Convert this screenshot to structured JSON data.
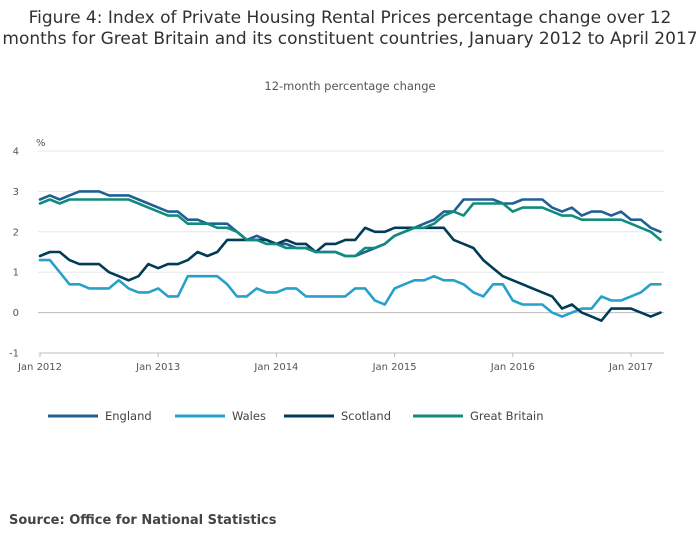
{
  "chart_data": {
    "type": "line",
    "title": "Figure 4: Index of Private Housing Rental Prices percentage change over 12 months for Great Britain and its constituent countries, January 2012 to April 2017",
    "subtitle": "12-month percentage change",
    "ylabel": "%",
    "ylim": [
      -1,
      4
    ],
    "yticks": [
      "-1",
      "0",
      "1",
      "2",
      "3",
      "4"
    ],
    "xticks": [
      {
        "label": "Jan 2012",
        "index": 0
      },
      {
        "label": "Jan 2013",
        "index": 12
      },
      {
        "label": "Jan 2014",
        "index": 24
      },
      {
        "label": "Jan 2015",
        "index": 36
      },
      {
        "label": "Jan 2016",
        "index": 48
      },
      {
        "label": "Jan 2017",
        "index": 60
      }
    ],
    "grid": true,
    "legend_position": "bottom",
    "series": [
      {
        "name": "England",
        "color": "#206095",
        "values": [
          2.8,
          2.9,
          2.8,
          2.9,
          3.0,
          3.0,
          3.0,
          2.9,
          2.9,
          2.9,
          2.8,
          2.7,
          2.6,
          2.5,
          2.5,
          2.3,
          2.3,
          2.2,
          2.2,
          2.2,
          2.0,
          1.8,
          1.9,
          1.8,
          1.7,
          1.7,
          1.6,
          1.6,
          1.5,
          1.5,
          1.5,
          1.4,
          1.4,
          1.5,
          1.6,
          1.7,
          1.9,
          2.0,
          2.1,
          2.2,
          2.3,
          2.5,
          2.5,
          2.8,
          2.8,
          2.8,
          2.8,
          2.7,
          2.7,
          2.8,
          2.8,
          2.8,
          2.6,
          2.5,
          2.6,
          2.4,
          2.5,
          2.5,
          2.4,
          2.5,
          2.3,
          2.3,
          2.1,
          2.0
        ]
      },
      {
        "name": "Wales",
        "color": "#27a0cc",
        "values": [
          1.3,
          1.3,
          1.0,
          0.7,
          0.7,
          0.6,
          0.6,
          0.6,
          0.8,
          0.6,
          0.5,
          0.5,
          0.6,
          0.4,
          0.4,
          0.9,
          0.9,
          0.9,
          0.9,
          0.7,
          0.4,
          0.4,
          0.6,
          0.5,
          0.5,
          0.6,
          0.6,
          0.4,
          0.4,
          0.4,
          0.4,
          0.4,
          0.6,
          0.6,
          0.3,
          0.2,
          0.6,
          0.7,
          0.8,
          0.8,
          0.9,
          0.8,
          0.8,
          0.7,
          0.5,
          0.4,
          0.7,
          0.7,
          0.3,
          0.2,
          0.2,
          0.2,
          0.0,
          -0.1,
          0.0,
          0.1,
          0.1,
          0.4,
          0.3,
          0.3,
          0.4,
          0.5,
          0.7,
          0.7
        ]
      },
      {
        "name": "Scotland",
        "color": "#003c57",
        "values": [
          1.4,
          1.5,
          1.5,
          1.3,
          1.2,
          1.2,
          1.2,
          1.0,
          0.9,
          0.8,
          0.9,
          1.2,
          1.1,
          1.2,
          1.2,
          1.3,
          1.5,
          1.4,
          1.5,
          1.8,
          1.8,
          1.8,
          1.8,
          1.8,
          1.7,
          1.8,
          1.7,
          1.7,
          1.5,
          1.7,
          1.7,
          1.8,
          1.8,
          2.1,
          2.0,
          2.0,
          2.1,
          2.1,
          2.1,
          2.1,
          2.1,
          2.1,
          1.8,
          1.7,
          1.6,
          1.3,
          1.1,
          0.9,
          0.8,
          0.7,
          0.6,
          0.5,
          0.4,
          0.1,
          0.2,
          0.0,
          -0.1,
          -0.2,
          0.1,
          0.1,
          0.1,
          0.0,
          -0.1,
          0.0
        ]
      },
      {
        "name": "Great Britain",
        "color": "#118c7b",
        "values": [
          2.7,
          2.8,
          2.7,
          2.8,
          2.8,
          2.8,
          2.8,
          2.8,
          2.8,
          2.8,
          2.7,
          2.6,
          2.5,
          2.4,
          2.4,
          2.2,
          2.2,
          2.2,
          2.1,
          2.1,
          2.0,
          1.8,
          1.8,
          1.7,
          1.7,
          1.6,
          1.6,
          1.6,
          1.5,
          1.5,
          1.5,
          1.4,
          1.4,
          1.6,
          1.6,
          1.7,
          1.9,
          2.0,
          2.1,
          2.1,
          2.2,
          2.4,
          2.5,
          2.4,
          2.7,
          2.7,
          2.7,
          2.7,
          2.5,
          2.6,
          2.6,
          2.6,
          2.5,
          2.4,
          2.4,
          2.3,
          2.3,
          2.3,
          2.3,
          2.3,
          2.2,
          2.1,
          2.0,
          1.8
        ]
      }
    ]
  },
  "source": "Source: Office for National Statistics"
}
